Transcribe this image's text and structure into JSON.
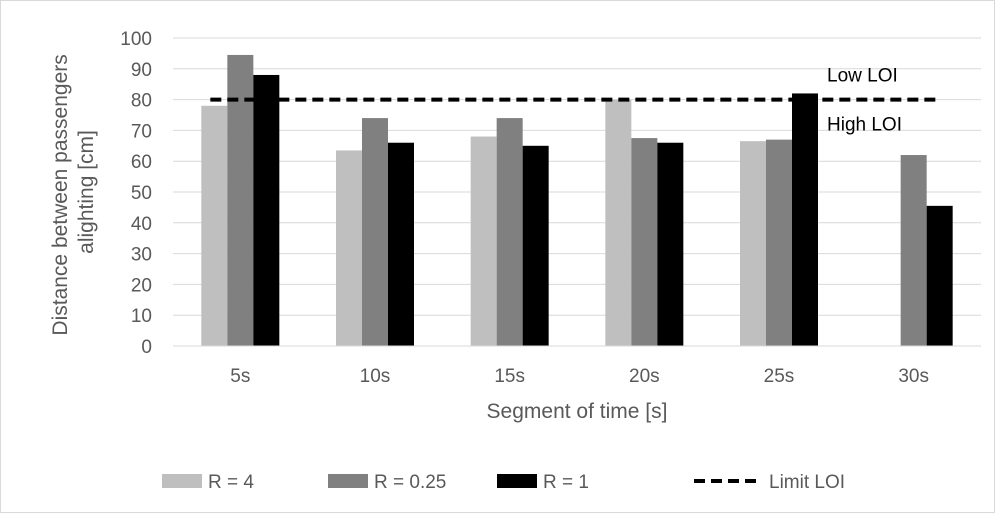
{
  "chart_data": {
    "type": "bar",
    "title": "",
    "xlabel": "Segment of time [s]",
    "ylabel_lines": [
      "Distance between passengers",
      "alighting [cm]"
    ],
    "categories": [
      "5s",
      "10s",
      "15s",
      "20s",
      "25s",
      "30s"
    ],
    "ylim": [
      0,
      100
    ],
    "yticks": [
      0,
      10,
      20,
      30,
      40,
      50,
      60,
      70,
      80,
      90,
      100
    ],
    "grid": true,
    "legend_position": "bottom",
    "series": [
      {
        "name": "R = 4",
        "color": "#bfbfbf",
        "values": [
          78,
          63.5,
          68,
          80,
          66.5,
          null
        ]
      },
      {
        "name": "R = 0.25",
        "color": "#808080",
        "values": [
          94.5,
          74,
          74,
          67.5,
          67,
          62
        ]
      },
      {
        "name": "R = 1",
        "color": "#000000",
        "values": [
          88,
          66,
          65,
          66,
          82,
          45.5
        ]
      }
    ],
    "limit_line": {
      "name": "Limit LOI",
      "value": 80,
      "style": "dashed",
      "color": "#000000"
    },
    "annotations": [
      {
        "text": "Low LOI"
      },
      {
        "text": "High LOI"
      }
    ]
  }
}
